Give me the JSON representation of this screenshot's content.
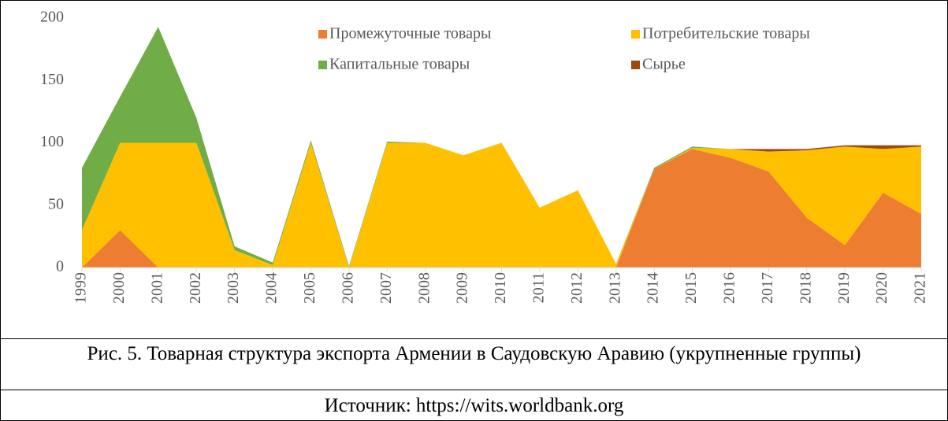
{
  "chart_data": {
    "type": "stacked_area",
    "categories": [
      "1999",
      "2000",
      "2001",
      "2002",
      "2003",
      "2004",
      "2005",
      "2006",
      "2007",
      "2008",
      "2009",
      "2010",
      "2011",
      "2012",
      "2013",
      "2014",
      "2015",
      "2016",
      "2017",
      "2018",
      "2019",
      "2020",
      "2021"
    ],
    "series": [
      {
        "name": "Промежуточные товары",
        "color": "#ed7d31",
        "values": [
          0,
          30,
          0,
          0,
          0,
          0,
          0,
          0,
          0,
          0,
          0,
          0,
          0,
          0,
          0,
          79,
          95,
          88,
          77,
          40,
          18,
          60,
          43
        ]
      },
      {
        "name": "Потребительские товары",
        "color": "#ffc000",
        "values": [
          30,
          70,
          100,
          100,
          14,
          2,
          100,
          0,
          100,
          100,
          90,
          100,
          48,
          62,
          3,
          0,
          1,
          7,
          16,
          54,
          79,
          35,
          54
        ]
      },
      {
        "name": "Капитальные товары",
        "color": "#70ad47",
        "values": [
          50,
          37,
          93,
          20,
          3,
          2,
          2,
          1,
          1,
          0,
          0,
          0,
          0,
          0,
          0,
          1,
          1,
          0,
          0,
          0,
          0,
          0,
          0
        ]
      },
      {
        "name": "Сырье",
        "color": "#9e480e",
        "values": [
          0,
          0,
          0,
          0,
          0,
          0,
          0,
          0,
          0,
          0,
          0,
          0,
          0,
          0,
          0,
          0,
          0,
          0,
          2,
          1,
          1,
          3,
          1
        ]
      }
    ],
    "ylim": [
      0,
      200
    ],
    "yticks": [
      0,
      50,
      100,
      150,
      200
    ],
    "grid": false,
    "caption": "Рис. 5. Товарная структура экспорта Армении в Саудовскую Аравию (укрупненные группы)",
    "source": "Источник: https://wits.worldbank.org"
  }
}
